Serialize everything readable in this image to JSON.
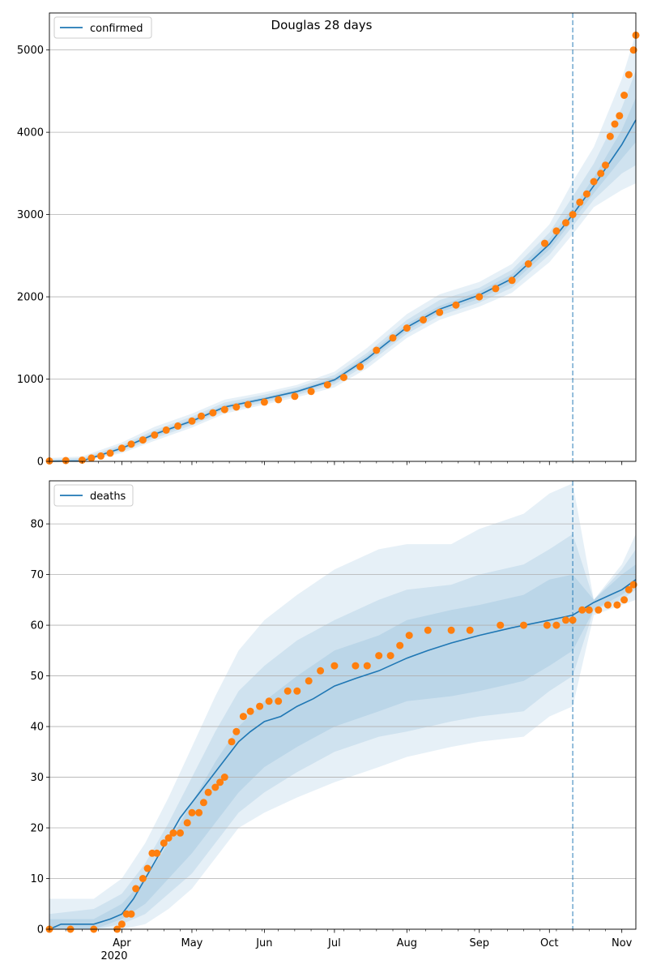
{
  "figure": {
    "title": "Douglas 28 days",
    "year_label": "2020"
  },
  "colors": {
    "model": "#1f77b4",
    "band": "#1f77b4",
    "observed": "#ff7f0e",
    "grid": "#b0b0b0",
    "axis": "#000000"
  },
  "chart_data": [
    {
      "type": "line",
      "legend": "confirmed",
      "legend_position": "top-left",
      "grid": "horizontal",
      "ylim": [
        0,
        5450
      ],
      "yticks": [
        0,
        1000,
        2000,
        3000,
        4000,
        5000
      ],
      "forecast_start": "2020-10-11",
      "model_series": {
        "name": "confirmed",
        "x": [
          "2020-03-01",
          "2020-03-15",
          "2020-04-01",
          "2020-04-15",
          "2020-05-01",
          "2020-05-15",
          "2020-06-01",
          "2020-06-15",
          "2020-07-01",
          "2020-07-15",
          "2020-08-01",
          "2020-08-15",
          "2020-09-01",
          "2020-09-15",
          "2020-10-01",
          "2020-10-11",
          "2020-10-20",
          "2020-11-01",
          "2020-11-07"
        ],
        "y": [
          0,
          5,
          160,
          330,
          490,
          660,
          760,
          850,
          990,
          1250,
          1630,
          1850,
          2020,
          2220,
          2640,
          3000,
          3350,
          3850,
          4150
        ]
      },
      "bands": [
        {
          "x": [
            "2020-03-01",
            "2020-03-15",
            "2020-04-01",
            "2020-04-15",
            "2020-05-01",
            "2020-05-15",
            "2020-06-01",
            "2020-06-15",
            "2020-07-01",
            "2020-07-15",
            "2020-08-01",
            "2020-08-15",
            "2020-09-01",
            "2020-09-15",
            "2020-10-01",
            "2020-10-11",
            "2020-10-20",
            "2020-11-01",
            "2020-11-07"
          ],
          "low": [
            0,
            0,
            100,
            250,
            410,
            580,
            690,
            780,
            900,
            1130,
            1500,
            1720,
            1880,
            2050,
            2420,
            2760,
            3090,
            3300,
            3380
          ],
          "high": [
            40,
            60,
            230,
            420,
            580,
            750,
            840,
            930,
            1090,
            1380,
            1790,
            2030,
            2180,
            2400,
            2880,
            3400,
            3820,
            4650,
            5200
          ]
        },
        {
          "x": [
            "2020-03-01",
            "2020-03-15",
            "2020-04-01",
            "2020-04-15",
            "2020-05-01",
            "2020-05-15",
            "2020-06-01",
            "2020-06-15",
            "2020-07-01",
            "2020-07-15",
            "2020-08-01",
            "2020-08-15",
            "2020-09-01",
            "2020-09-15",
            "2020-10-01",
            "2020-10-11",
            "2020-10-20",
            "2020-11-01",
            "2020-11-07"
          ],
          "low": [
            0,
            0,
            120,
            280,
            440,
            610,
            715,
            805,
            935,
            1180,
            1550,
            1770,
            1930,
            2110,
            2510,
            2860,
            3180,
            3500,
            3600
          ],
          "high": [
            25,
            40,
            200,
            380,
            545,
            715,
            810,
            900,
            1050,
            1320,
            1720,
            1960,
            2110,
            2330,
            2780,
            3220,
            3620,
            4300,
            4750
          ]
        },
        {
          "x": [
            "2020-03-01",
            "2020-03-15",
            "2020-04-01",
            "2020-04-15",
            "2020-05-01",
            "2020-05-15",
            "2020-06-01",
            "2020-06-15",
            "2020-07-01",
            "2020-07-15",
            "2020-08-01",
            "2020-08-15",
            "2020-09-01",
            "2020-09-15",
            "2020-10-01",
            "2020-10-11",
            "2020-10-20",
            "2020-11-01",
            "2020-11-07"
          ],
          "low": [
            0,
            0,
            140,
            305,
            465,
            635,
            738,
            828,
            965,
            1215,
            1590,
            1810,
            1975,
            2165,
            2575,
            2930,
            3260,
            3680,
            3880
          ],
          "high": [
            15,
            25,
            180,
            355,
            515,
            685,
            782,
            872,
            1015,
            1285,
            1670,
            1890,
            2065,
            2275,
            2705,
            3080,
            3450,
            4030,
            4420
          ]
        }
      ],
      "observed_series": {
        "name": "observed",
        "x": [
          "2020-03-01",
          "2020-03-08",
          "2020-03-15",
          "2020-03-19",
          "2020-03-23",
          "2020-03-27",
          "2020-04-01",
          "2020-04-05",
          "2020-04-10",
          "2020-04-15",
          "2020-04-20",
          "2020-04-25",
          "2020-05-01",
          "2020-05-05",
          "2020-05-10",
          "2020-05-15",
          "2020-05-20",
          "2020-05-25",
          "2020-06-01",
          "2020-06-07",
          "2020-06-14",
          "2020-06-21",
          "2020-06-28",
          "2020-07-05",
          "2020-07-12",
          "2020-07-19",
          "2020-07-26",
          "2020-08-01",
          "2020-08-08",
          "2020-08-15",
          "2020-08-22",
          "2020-09-01",
          "2020-09-08",
          "2020-09-15",
          "2020-09-22",
          "2020-09-29",
          "2020-10-04",
          "2020-10-08",
          "2020-10-11",
          "2020-10-14",
          "2020-10-17",
          "2020-10-20",
          "2020-10-23",
          "2020-10-25",
          "2020-10-27",
          "2020-10-29",
          "2020-10-31",
          "2020-11-02",
          "2020-11-04",
          "2020-11-06",
          "2020-11-07"
        ],
        "y": [
          5,
          10,
          15,
          40,
          65,
          100,
          160,
          210,
          260,
          320,
          380,
          430,
          490,
          550,
          590,
          630,
          660,
          690,
          720,
          750,
          790,
          850,
          930,
          1020,
          1150,
          1350,
          1500,
          1620,
          1720,
          1810,
          1900,
          2000,
          2100,
          2200,
          2400,
          2650,
          2800,
          2900,
          3000,
          3150,
          3250,
          3400,
          3500,
          3600,
          3950,
          4100,
          4200,
          4450,
          4700,
          5000,
          5180
        ]
      }
    },
    {
      "type": "line",
      "legend": "deaths",
      "legend_position": "top-left",
      "grid": "horizontal",
      "ylim": [
        0,
        88.5
      ],
      "yticks": [
        0,
        10,
        20,
        30,
        40,
        50,
        60,
        70,
        80
      ],
      "forecast_start": "2020-10-11",
      "x_start": "2020-03-01",
      "x_end": "2020-11-07",
      "xticks": [
        {
          "date": "2020-04-01",
          "label": "Apr"
        },
        {
          "date": "2020-05-01",
          "label": "May"
        },
        {
          "date": "2020-06-01",
          "label": "Jun"
        },
        {
          "date": "2020-07-01",
          "label": "Jul"
        },
        {
          "date": "2020-08-01",
          "label": "Aug"
        },
        {
          "date": "2020-09-01",
          "label": "Sep"
        },
        {
          "date": "2020-10-01",
          "label": "Oct"
        },
        {
          "date": "2020-11-01",
          "label": "Nov"
        }
      ],
      "model_series": {
        "name": "deaths",
        "x": [
          "2020-03-01",
          "2020-03-06",
          "2020-03-20",
          "2020-03-27",
          "2020-04-01",
          "2020-04-06",
          "2020-04-11",
          "2020-04-16",
          "2020-04-21",
          "2020-04-26",
          "2020-05-01",
          "2020-05-06",
          "2020-05-11",
          "2020-05-16",
          "2020-05-21",
          "2020-05-26",
          "2020-06-01",
          "2020-06-08",
          "2020-06-15",
          "2020-06-22",
          "2020-07-01",
          "2020-07-10",
          "2020-07-20",
          "2020-08-01",
          "2020-08-10",
          "2020-08-20",
          "2020-09-01",
          "2020-09-15",
          "2020-10-01",
          "2020-10-11",
          "2020-10-20",
          "2020-11-01",
          "2020-11-07"
        ],
        "y": [
          0,
          1,
          1,
          2,
          3,
          6,
          10,
          14,
          18,
          22,
          25,
          28,
          31,
          34,
          37,
          39,
          41,
          42,
          44,
          45.5,
          48,
          49.5,
          51,
          53.5,
          55,
          56.5,
          58,
          59.5,
          61,
          62,
          64.5,
          67,
          69
        ]
      },
      "bands": [
        {
          "x": [
            "2020-03-01",
            "2020-03-20",
            "2020-04-01",
            "2020-04-11",
            "2020-04-21",
            "2020-05-01",
            "2020-05-11",
            "2020-05-21",
            "2020-06-01",
            "2020-06-15",
            "2020-07-01",
            "2020-07-20",
            "2020-08-01",
            "2020-08-20",
            "2020-09-01",
            "2020-09-20",
            "2020-10-01",
            "2020-10-11",
            "2020-10-20",
            "2020-11-01",
            "2020-11-07"
          ],
          "low": [
            0,
            0,
            0,
            1,
            4,
            8,
            14,
            20,
            23,
            26,
            29,
            32,
            34,
            36,
            37,
            38,
            42,
            44,
            62,
            64,
            65
          ],
          "high": [
            6,
            6,
            10,
            17,
            26,
            36,
            46,
            55,
            61,
            66,
            71,
            75,
            76,
            76,
            79,
            82,
            86,
            88,
            65,
            72,
            78
          ]
        },
        {
          "x": [
            "2020-03-01",
            "2020-03-20",
            "2020-04-01",
            "2020-04-11",
            "2020-04-21",
            "2020-05-01",
            "2020-05-11",
            "2020-05-21",
            "2020-06-01",
            "2020-06-15",
            "2020-07-01",
            "2020-07-20",
            "2020-08-01",
            "2020-08-20",
            "2020-09-01",
            "2020-09-20",
            "2020-10-01",
            "2020-10-11",
            "2020-10-20",
            "2020-11-01",
            "2020-11-07"
          ],
          "low": [
            0,
            0,
            1,
            3,
            7,
            11,
            17,
            23,
            27,
            31,
            35,
            38,
            39,
            41,
            42,
            43,
            47,
            50,
            63,
            65,
            67
          ],
          "high": [
            3,
            4,
            7,
            13,
            21,
            30,
            39,
            47,
            52,
            57,
            61,
            65,
            67,
            68,
            70,
            72,
            75,
            78,
            65,
            71,
            75
          ]
        },
        {
          "x": [
            "2020-03-01",
            "2020-03-20",
            "2020-04-01",
            "2020-04-11",
            "2020-04-21",
            "2020-05-01",
            "2020-05-11",
            "2020-05-21",
            "2020-06-01",
            "2020-06-15",
            "2020-07-01",
            "2020-07-20",
            "2020-08-01",
            "2020-08-20",
            "2020-09-01",
            "2020-09-20",
            "2020-10-01",
            "2020-10-11",
            "2020-10-20",
            "2020-11-01",
            "2020-11-07"
          ],
          "low": [
            0,
            0,
            2,
            5,
            10,
            15,
            21,
            27,
            32,
            36,
            40,
            43,
            45,
            46,
            47,
            49,
            52,
            55,
            63,
            66,
            68
          ],
          "high": [
            2,
            2,
            5,
            10,
            17,
            25,
            33,
            40,
            45,
            50,
            55,
            58,
            61,
            63,
            64,
            66,
            69,
            70,
            65,
            70,
            72
          ]
        }
      ],
      "observed_series": {
        "name": "observed",
        "x": [
          "2020-03-01",
          "2020-03-10",
          "2020-03-20",
          "2020-03-30",
          "2020-04-01",
          "2020-04-03",
          "2020-04-05",
          "2020-04-07",
          "2020-04-10",
          "2020-04-12",
          "2020-04-14",
          "2020-04-16",
          "2020-04-19",
          "2020-04-21",
          "2020-04-23",
          "2020-04-26",
          "2020-04-29",
          "2020-05-01",
          "2020-05-04",
          "2020-05-06",
          "2020-05-08",
          "2020-05-11",
          "2020-05-13",
          "2020-05-15",
          "2020-05-18",
          "2020-05-20",
          "2020-05-23",
          "2020-05-26",
          "2020-05-30",
          "2020-06-03",
          "2020-06-07",
          "2020-06-11",
          "2020-06-15",
          "2020-06-20",
          "2020-06-25",
          "2020-07-01",
          "2020-07-10",
          "2020-07-15",
          "2020-07-20",
          "2020-07-25",
          "2020-07-29",
          "2020-08-02",
          "2020-08-10",
          "2020-08-20",
          "2020-08-28",
          "2020-09-10",
          "2020-09-20",
          "2020-09-30",
          "2020-10-04",
          "2020-10-08",
          "2020-10-11",
          "2020-10-15",
          "2020-10-18",
          "2020-10-22",
          "2020-10-26",
          "2020-10-30",
          "2020-11-02",
          "2020-11-04",
          "2020-11-06"
        ],
        "y": [
          0,
          0,
          0,
          0,
          1,
          3,
          3,
          8,
          10,
          12,
          15,
          15,
          17,
          18,
          19,
          19,
          21,
          23,
          23,
          25,
          27,
          28,
          29,
          30,
          37,
          39,
          42,
          43,
          44,
          45,
          45,
          47,
          47,
          49,
          51,
          52,
          52,
          52,
          54,
          54,
          56,
          58,
          59,
          59,
          59,
          60,
          60,
          60,
          60,
          61,
          61,
          63,
          63,
          63,
          64,
          64,
          65,
          67,
          68
        ]
      }
    }
  ]
}
